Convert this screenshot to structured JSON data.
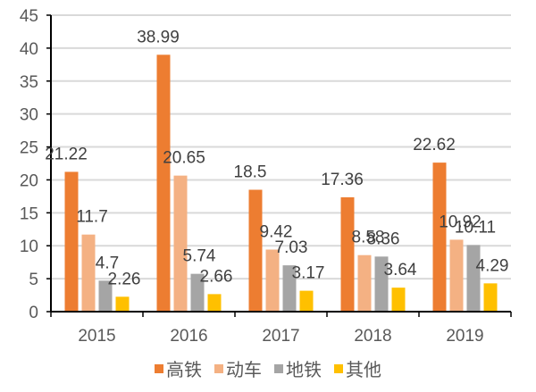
{
  "chart_data": {
    "type": "bar",
    "title": "",
    "xlabel": "",
    "ylabel": "",
    "categories": [
      "2015",
      "2016",
      "2017",
      "2018",
      "2019"
    ],
    "series": [
      {
        "name": "高铁",
        "color": "#ED7D31",
        "values": [
          21.22,
          38.99,
          18.5,
          17.36,
          22.62
        ]
      },
      {
        "name": "动车",
        "color": "#F4B183",
        "values": [
          11.7,
          20.65,
          9.42,
          8.58,
          10.92
        ]
      },
      {
        "name": "地铁",
        "color": "#A5A5A5",
        "values": [
          4.7,
          5.74,
          7.03,
          8.36,
          10.11
        ]
      },
      {
        "name": "其他",
        "color": "#FFC000",
        "values": [
          2.26,
          2.66,
          3.17,
          3.64,
          4.29
        ]
      }
    ],
    "ylim": [
      0,
      45
    ],
    "yticks": [
      0,
      5,
      10,
      15,
      20,
      25,
      30,
      35,
      40,
      45
    ],
    "grid": true,
    "legend_position": "bottom",
    "data_labels": true
  }
}
